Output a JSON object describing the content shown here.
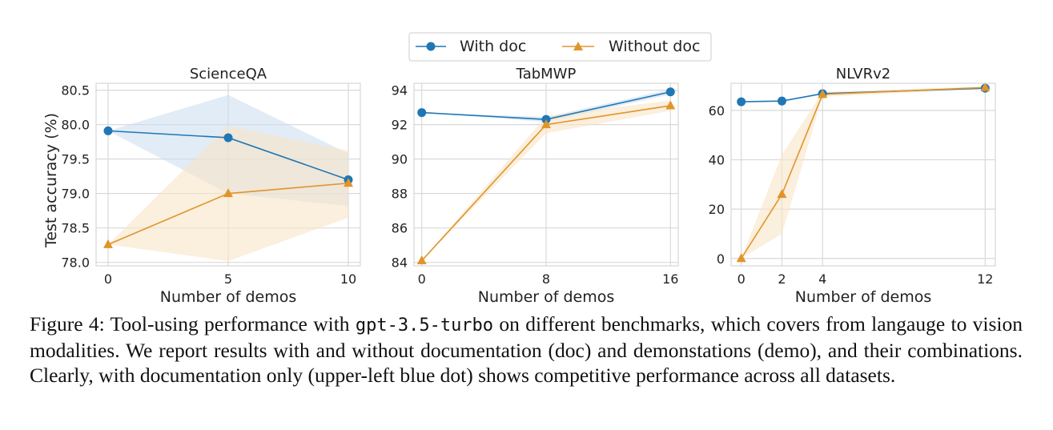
{
  "legend": {
    "series": [
      "With doc",
      "Without doc"
    ]
  },
  "shared": {
    "ylabel": "Test accuracy (%)",
    "xlabel": "Number of demos"
  },
  "colors": {
    "with_doc": "#1f77b4",
    "without_doc": "#e0952b",
    "with_doc_band": "#c8ddf0",
    "without_doc_band": "#f8e4c6",
    "grid": "#d9d9d9"
  },
  "chart_data": [
    {
      "type": "line",
      "title": "ScienceQA",
      "xlabel": "Number of demos",
      "ylabel": "Test accuracy (%)",
      "x": [
        0,
        5,
        10
      ],
      "xticks": [
        "0",
        "5",
        "10"
      ],
      "yticks": [
        "78.0",
        "78.5",
        "79.0",
        "79.5",
        "80.0",
        "80.5"
      ],
      "xlim": [
        -0.5,
        10.5
      ],
      "ylim": [
        77.95,
        80.6
      ],
      "series": [
        {
          "name": "With doc",
          "values": [
            79.91,
            79.81,
            79.2
          ],
          "band_upper": [
            79.91,
            80.43,
            79.58
          ],
          "band_lower": [
            79.91,
            79.0,
            78.82
          ]
        },
        {
          "name": "Without doc",
          "values": [
            78.26,
            79.0,
            79.15
          ],
          "band_upper": [
            78.26,
            79.98,
            79.62
          ],
          "band_lower": [
            78.26,
            78.02,
            78.65
          ]
        }
      ]
    },
    {
      "type": "line",
      "title": "TabMWP",
      "xlabel": "Number of demos",
      "ylabel": "",
      "x": [
        0,
        8,
        16
      ],
      "xticks": [
        "0",
        "8",
        "16"
      ],
      "yticks": [
        "84",
        "86",
        "88",
        "90",
        "92",
        "94"
      ],
      "xlim": [
        -0.5,
        16.5
      ],
      "ylim": [
        83.8,
        94.4
      ],
      "series": [
        {
          "name": "With doc",
          "values": [
            92.7,
            92.3,
            93.9
          ],
          "band_upper": [
            92.7,
            92.45,
            94.05
          ],
          "band_lower": [
            92.7,
            92.15,
            93.75
          ]
        },
        {
          "name": "Without doc",
          "values": [
            84.1,
            92.0,
            93.1
          ],
          "band_upper": [
            84.1,
            92.5,
            93.4
          ],
          "band_lower": [
            84.1,
            91.5,
            92.8
          ]
        }
      ]
    },
    {
      "type": "line",
      "title": "NLVRv2",
      "xlabel": "Number of demos",
      "ylabel": "",
      "x": [
        0,
        2,
        4,
        12
      ],
      "xticks": [
        "0",
        "2",
        "4",
        "12"
      ],
      "yticks": [
        "0",
        "20",
        "40",
        "60"
      ],
      "xlim": [
        -0.5,
        12.5
      ],
      "ylim": [
        -3,
        71
      ],
      "series": [
        {
          "name": "With doc",
          "values": [
            63.5,
            63.8,
            66.8,
            69.0
          ],
          "band_upper": [
            63.5,
            64.0,
            67.2,
            69.3
          ],
          "band_lower": [
            63.5,
            63.6,
            66.4,
            68.7
          ]
        },
        {
          "name": "Without doc",
          "values": [
            0.0,
            26.0,
            66.5,
            69.3
          ],
          "band_upper": [
            0.0,
            42.0,
            67.5,
            69.8
          ],
          "band_lower": [
            0.0,
            10.0,
            65.5,
            68.8
          ]
        }
      ]
    }
  ],
  "caption": {
    "prefix": "Figure 4: Tool-using performance with ",
    "model": "gpt-3.5-turbo",
    "rest": " on different benchmarks, which covers from langauge to vision modalities. We report results with and without documentation (doc) and demonstations (demo), and their combinations. Clearly, with documentation only (upper-left blue dot) shows competitive performance across all datasets."
  }
}
